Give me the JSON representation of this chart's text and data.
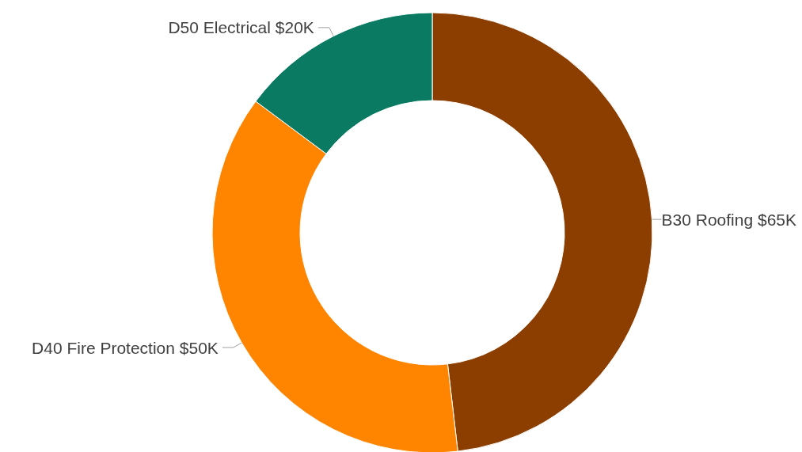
{
  "chart_data": {
    "type": "donut",
    "categories": [
      "B30 Roofing",
      "D40 Fire Protection",
      "D50 Electrical"
    ],
    "values": [
      65,
      50,
      20
    ],
    "value_labels": [
      "$65K",
      "$50K",
      "$20K"
    ],
    "colors": [
      "#8b3e00",
      "#ff8400",
      "#0a7a62"
    ],
    "legend": false
  }
}
